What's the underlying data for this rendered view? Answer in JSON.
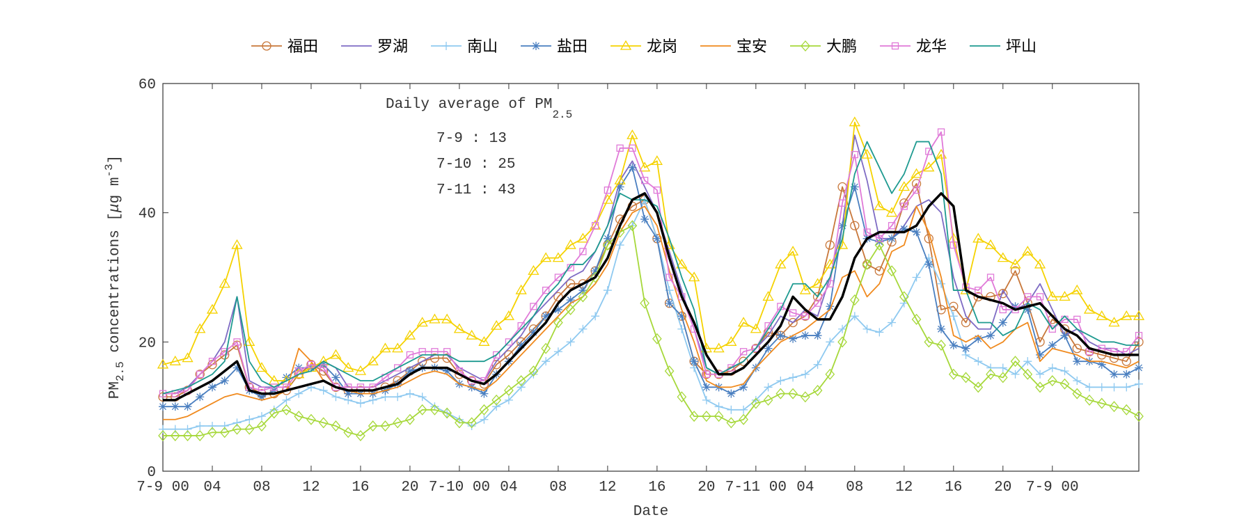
{
  "chart_data": {
    "type": "line",
    "x_label": "Date",
    "y_label": [
      "PM",
      "2.5",
      " concentrations [",
      "μ",
      "g m",
      "-3",
      "]"
    ],
    "annotation": {
      "title": [
        "Daily average of PM",
        "2.5"
      ],
      "lines": [
        "7-9 : 13",
        "7-10 : 25",
        "7-11 : 43"
      ]
    },
    "x": [
      0,
      1,
      2,
      3,
      4,
      5,
      6,
      7,
      8,
      9,
      10,
      11,
      12,
      13,
      14,
      15,
      16,
      17,
      18,
      19,
      20,
      21,
      22,
      23,
      24,
      25,
      26,
      27,
      28,
      29,
      30,
      31,
      32,
      33,
      34,
      35,
      36,
      37,
      38,
      39,
      40,
      41,
      42,
      43,
      44,
      45,
      46,
      47,
      48,
      49,
      50,
      51,
      52,
      53,
      54,
      55,
      56,
      57,
      58,
      59,
      60,
      61,
      62,
      63,
      64,
      65,
      66,
      67,
      68,
      69,
      70,
      71,
      72,
      73,
      74,
      75,
      76,
      77,
      78,
      79
    ],
    "xlim": [
      0,
      79
    ],
    "xticks": [
      {
        "value": 0,
        "label": "7-9 00"
      },
      {
        "value": 4,
        "label": "04"
      },
      {
        "value": 8,
        "label": "08"
      },
      12,
      16,
      20,
      {
        "value": 24,
        "label": "7-10 00"
      },
      {
        "value": 28,
        "label": "04"
      },
      {
        "value": 32,
        "label": "08"
      },
      {
        "value": 36,
        "label": "12"
      },
      {
        "value": 40,
        "label": "16"
      },
      {
        "value": 44,
        "label": "20"
      },
      {
        "value": 48,
        "label": "7-11 00"
      },
      {
        "value": 52,
        "label": "04"
      },
      {
        "value": 56,
        "label": "08"
      },
      {
        "value": 60,
        "label": "12"
      },
      {
        "value": 64,
        "label": "16"
      },
      {
        "value": 68,
        "label": "20"
      },
      {
        "value": 72,
        "label": "7-9 00"
      }
    ],
    "ylim": [
      0,
      60
    ],
    "yticks": [
      0,
      20,
      40,
      60
    ],
    "legend": "top",
    "series": [
      {
        "name": "福田",
        "color": "#c8773a",
        "marker": "circle",
        "values": [
          11.5,
          11.5,
          12.5,
          15,
          16.5,
          18,
          19.5,
          13,
          12,
          12,
          12.5,
          15,
          16.5,
          15.5,
          13,
          12.5,
          12.5,
          12.5,
          13,
          14,
          15.5,
          17,
          17.5,
          17.5,
          15,
          14,
          13.5,
          16.5,
          18,
          20,
          22,
          24,
          27,
          29,
          29,
          31,
          35,
          39,
          41,
          42,
          36,
          26,
          24,
          17,
          15,
          15,
          15.5,
          17,
          19,
          21.5,
          21,
          23,
          24,
          27,
          35,
          44,
          38,
          32,
          31,
          35.5,
          41.5,
          44.5,
          36,
          25,
          25.5,
          23,
          27,
          27,
          27.5,
          31,
          26,
          20,
          23.5,
          22,
          19,
          18.5,
          18,
          17.5,
          17,
          20
        ]
      },
      {
        "name": "罗湖",
        "color": "#7e6bc4",
        "marker": "none",
        "values": [
          12,
          12,
          13,
          15,
          17,
          20,
          27,
          14,
          13,
          13,
          14,
          15,
          16,
          17,
          16,
          13,
          13,
          13,
          14,
          15,
          16,
          17,
          18,
          18,
          16,
          15,
          14,
          17,
          19,
          21,
          24,
          26,
          28,
          30,
          31,
          34,
          38,
          45,
          48,
          44,
          40,
          34,
          28,
          22,
          16,
          15,
          16,
          17,
          19,
          21,
          24,
          23,
          25,
          24,
          30,
          38,
          52,
          45,
          36,
          36,
          38,
          41,
          42,
          40,
          30,
          24,
          22,
          22,
          28,
          25,
          26,
          29,
          25,
          21,
          22,
          20,
          19,
          19,
          18,
          19
        ]
      },
      {
        "name": "南山",
        "color": "#8ec9f0",
        "marker": "plus",
        "values": [
          6.5,
          6.5,
          6.5,
          7,
          7,
          7,
          7.5,
          8,
          8.5,
          9.5,
          11,
          12,
          13,
          12.5,
          11.5,
          11,
          10.5,
          11,
          11.5,
          11.5,
          12,
          11.5,
          10,
          9,
          8,
          7,
          8,
          10,
          11,
          13,
          15,
          17,
          18.5,
          20,
          22,
          24,
          28,
          35,
          38,
          42,
          36,
          28,
          22,
          16,
          11,
          10,
          9.5,
          9.5,
          11,
          13,
          14,
          14.5,
          15,
          16.5,
          20,
          22,
          24,
          22,
          21.5,
          23,
          26,
          30,
          33,
          29,
          24,
          18,
          17,
          16,
          16,
          15,
          17,
          15,
          16,
          15.5,
          14,
          13,
          13,
          13,
          13,
          13.5
        ]
      },
      {
        "name": "盐田",
        "color": "#4a7fc0",
        "marker": "star",
        "values": [
          10,
          10,
          10,
          11.5,
          13,
          14,
          16,
          12.5,
          11.5,
          12.5,
          14.5,
          16,
          16,
          16.5,
          14.5,
          12,
          12,
          12,
          12.5,
          13.5,
          15.5,
          16,
          16,
          15.5,
          13.5,
          13,
          12,
          15,
          17,
          19.5,
          21.5,
          24,
          25,
          26.5,
          28,
          31,
          36,
          44,
          47,
          39,
          36,
          26,
          24,
          17,
          13,
          13,
          12,
          13,
          16,
          19,
          21,
          20.5,
          21,
          21,
          25.5,
          38,
          44,
          36,
          35.5,
          36,
          37.5,
          37,
          32,
          22,
          19.5,
          19,
          20.5,
          21,
          23,
          25.5,
          25,
          18,
          19.5,
          21,
          17,
          17,
          16.5,
          15,
          15,
          16
        ]
      },
      {
        "name": "龙岗",
        "color": "#f5d200",
        "marker": "triangle",
        "values": [
          16.5,
          17,
          17.5,
          22,
          25,
          29,
          35,
          20,
          16,
          14,
          14,
          15,
          16,
          17,
          18,
          16,
          15.5,
          17,
          19,
          19,
          21,
          23,
          23.5,
          23.5,
          22,
          21,
          20,
          22.5,
          24,
          28,
          31,
          33,
          33,
          35,
          36,
          38,
          42,
          45,
          52,
          47,
          48,
          35,
          32,
          30,
          19,
          19,
          20,
          23,
          22,
          27,
          32,
          34,
          28,
          29,
          32,
          35,
          54,
          49,
          41,
          40,
          44,
          46,
          47,
          49,
          36,
          28,
          36,
          35,
          33,
          32,
          34,
          32,
          27,
          27,
          28,
          25,
          24,
          23,
          24,
          24
        ]
      },
      {
        "name": "宝安",
        "color": "#f08a1e",
        "marker": "none",
        "values": [
          8,
          8,
          8.5,
          9.5,
          10.5,
          11.5,
          12,
          11.5,
          11,
          11.5,
          12.5,
          19,
          17,
          14,
          13,
          12.5,
          12,
          12,
          12.5,
          13,
          14,
          15,
          15.5,
          15,
          13.5,
          13,
          12.5,
          14,
          16,
          18,
          20,
          22,
          24,
          26,
          27,
          29,
          32,
          37,
          40,
          41,
          38,
          31,
          25,
          20,
          14,
          13,
          13,
          13.5,
          16,
          18,
          20,
          21,
          22,
          23.5,
          25,
          30,
          31,
          27,
          29,
          34,
          35,
          41,
          37,
          30,
          21,
          20,
          21,
          19,
          20,
          22,
          23,
          17,
          19,
          18.5,
          18,
          17,
          17,
          16.5,
          16,
          17
        ]
      },
      {
        "name": "大鹏",
        "color": "#a6d83a",
        "marker": "diamond",
        "values": [
          5.5,
          5.5,
          5.5,
          5.5,
          6,
          6,
          6.5,
          6.5,
          7,
          9,
          9.5,
          8.5,
          8,
          7.5,
          7,
          6,
          5.5,
          7,
          7,
          7.5,
          8,
          9.5,
          9.5,
          9,
          7.5,
          7.5,
          9.5,
          11,
          12.5,
          14,
          15.5,
          19,
          23,
          25,
          27,
          30,
          35,
          37,
          38,
          26,
          20.5,
          15.5,
          11.5,
          8.5,
          8.5,
          8.5,
          7.5,
          8,
          10.5,
          11,
          12,
          12,
          11.5,
          12.5,
          15,
          20,
          26.5,
          32,
          35,
          31,
          27,
          23.5,
          20,
          19.5,
          15,
          14.5,
          13,
          15,
          14.5,
          17,
          15,
          13,
          14,
          13.5,
          12,
          11,
          10.5,
          10,
          9.5,
          8.5
        ]
      },
      {
        "name": "龙华",
        "color": "#e07ad8",
        "marker": "square",
        "values": [
          12,
          12,
          12.5,
          15,
          17,
          18.5,
          20,
          13,
          12.5,
          13,
          13,
          15.5,
          16.5,
          16,
          13,
          13,
          13,
          13,
          14.5,
          16,
          18,
          18.5,
          18.5,
          18.5,
          15.5,
          14,
          14,
          18,
          20,
          22.5,
          25.5,
          28,
          30,
          31.5,
          34,
          38,
          43.5,
          50,
          50,
          45,
          43.5,
          30,
          27,
          22,
          15,
          15,
          16,
          18.5,
          19,
          22.5,
          25.5,
          24.5,
          24,
          26,
          29,
          41.5,
          49,
          37,
          36,
          38,
          41,
          43.5,
          49.5,
          52.5,
          35,
          28.5,
          28,
          30,
          25,
          25,
          27,
          27,
          22,
          23.5,
          23.5,
          18.5,
          19,
          18.5,
          18.5,
          21
        ]
      },
      {
        "name": "坪山",
        "color": "#1e9a90",
        "marker": "none",
        "values": [
          12,
          12.5,
          13,
          14,
          15,
          17,
          27,
          17,
          14,
          13,
          14,
          15,
          15.5,
          17,
          16,
          15,
          14,
          14,
          15,
          16,
          17,
          18,
          18,
          18,
          17,
          17,
          17,
          18,
          20,
          22,
          24,
          27,
          29,
          32,
          32,
          34,
          38,
          43,
          42,
          42,
          41,
          36,
          30,
          25,
          16,
          15,
          16,
          17,
          19,
          22,
          25,
          29,
          29,
          27,
          30,
          36,
          46,
          51,
          47,
          43,
          46,
          51,
          51,
          46,
          28,
          28,
          23,
          23,
          21,
          22,
          26,
          25,
          22,
          24,
          22,
          21,
          20,
          20,
          19.5,
          19.5
        ]
      },
      {
        "color": "#000000",
        "marker": "none",
        "values": [
          11,
          11,
          12,
          13,
          14,
          15.5,
          17,
          12.5,
          12,
          12,
          12.5,
          13,
          13.5,
          14,
          13,
          12.5,
          12.5,
          12.5,
          13,
          13.5,
          15,
          16,
          16,
          16,
          15,
          14,
          13.5,
          15,
          17,
          19,
          21,
          23,
          26,
          28,
          29,
          30,
          33,
          38,
          42,
          43,
          40,
          33,
          27,
          23,
          18,
          15,
          15,
          16,
          18,
          20,
          22.5,
          27,
          25,
          23.5,
          23.5,
          27,
          33,
          36,
          37,
          37,
          37,
          38,
          41,
          43,
          41,
          28,
          27,
          26.5,
          26,
          25,
          25.5,
          26,
          24,
          22,
          21,
          19,
          18.5,
          18,
          18,
          18
        ]
      }
    ]
  }
}
